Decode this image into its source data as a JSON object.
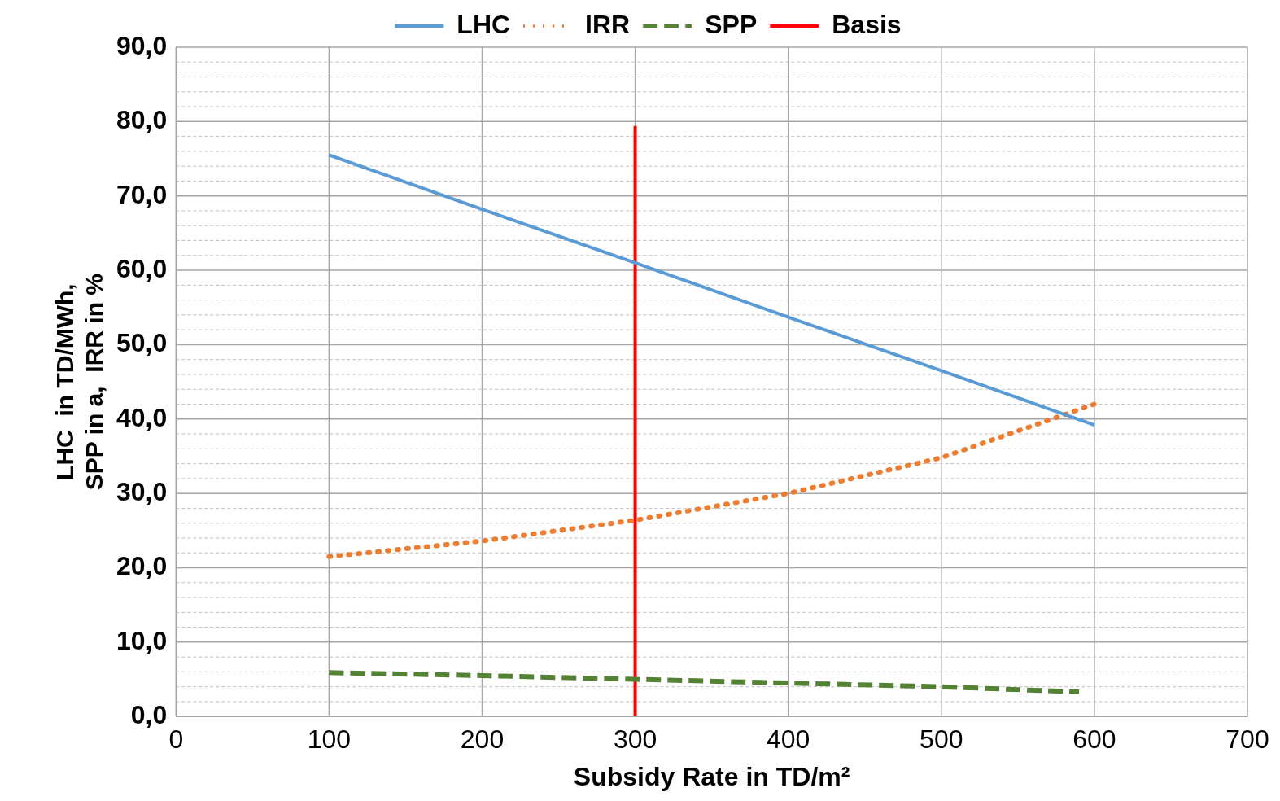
{
  "chart_data": {
    "type": "line",
    "xlabel": "Subsidy Rate in TD/m²",
    "ylabel": "LHC  in TD/MWh,\nSPP in a,  IRR in %",
    "x": [
      100,
      200,
      300,
      400,
      500,
      600
    ],
    "series": [
      {
        "name": "LHC",
        "color": "#5b9bd5",
        "line_style": "solid",
        "values": [
          75.5,
          68.2,
          61.0,
          53.7,
          46.5,
          39.2
        ]
      },
      {
        "name": "IRR",
        "color": "#ed7d31",
        "line_style": "dotted",
        "values": [
          21.5,
          23.6,
          26.4,
          30.0,
          34.8,
          42.0
        ]
      },
      {
        "name": "SPP",
        "color": "#548235",
        "line_style": "dashed",
        "x": [
          100,
          200,
          300,
          400,
          500,
          590
        ],
        "values": [
          5.9,
          5.5,
          5.0,
          4.5,
          4.0,
          3.3
        ]
      },
      {
        "name": "Basis",
        "color": "#ff0000",
        "line_style": "solid",
        "x": [
          300,
          300
        ],
        "values": [
          0,
          79.4
        ]
      }
    ],
    "xlim": [
      0,
      700
    ],
    "xticks": [
      0,
      100,
      200,
      300,
      400,
      500,
      600,
      700
    ],
    "ylim": [
      0,
      90
    ],
    "yticks": [
      {
        "value": 0,
        "label": "0,0"
      },
      {
        "value": 2,
        "label": null
      },
      {
        "value": 4,
        "label": null
      },
      {
        "value": 6,
        "label": null
      },
      {
        "value": 8,
        "label": null
      },
      {
        "value": 10,
        "label": "10,0"
      },
      {
        "value": 12,
        "label": null
      },
      {
        "value": 14,
        "label": null
      },
      {
        "value": 16,
        "label": null
      },
      {
        "value": 18,
        "label": null
      },
      {
        "value": 20,
        "label": "20,0"
      },
      {
        "value": 22,
        "label": null
      },
      {
        "value": 24,
        "label": null
      },
      {
        "value": 26,
        "label": null
      },
      {
        "value": 28,
        "label": null
      },
      {
        "value": 30,
        "label": "30,0"
      },
      {
        "value": 32,
        "label": null
      },
      {
        "value": 34,
        "label": null
      },
      {
        "value": 36,
        "label": null
      },
      {
        "value": 38,
        "label": null
      },
      {
        "value": 40,
        "label": "40,0"
      },
      {
        "value": 42,
        "label": null
      },
      {
        "value": 44,
        "label": null
      },
      {
        "value": 46,
        "label": null
      },
      {
        "value": 48,
        "label": null
      },
      {
        "value": 50,
        "label": "50,0"
      },
      {
        "value": 52,
        "label": null
      },
      {
        "value": 54,
        "label": null
      },
      {
        "value": 56,
        "label": null
      },
      {
        "value": 58,
        "label": null
      },
      {
        "value": 60,
        "label": "60,0"
      },
      {
        "value": 62,
        "label": null
      },
      {
        "value": 64,
        "label": null
      },
      {
        "value": 66,
        "label": null
      },
      {
        "value": 68,
        "label": null
      },
      {
        "value": 70,
        "label": "70,0"
      },
      {
        "value": 72,
        "label": null
      },
      {
        "value": 74,
        "label": null
      },
      {
        "value": 76,
        "label": null
      },
      {
        "value": 78,
        "label": null
      },
      {
        "value": 80,
        "label": "80,0"
      },
      {
        "value": 82,
        "label": null
      },
      {
        "value": 84,
        "label": null
      },
      {
        "value": 86,
        "label": null
      },
      {
        "value": 88,
        "label": null
      },
      {
        "value": 90,
        "label": "90,0"
      }
    ],
    "grid": true,
    "legend": "top",
    "marker": "none"
  }
}
